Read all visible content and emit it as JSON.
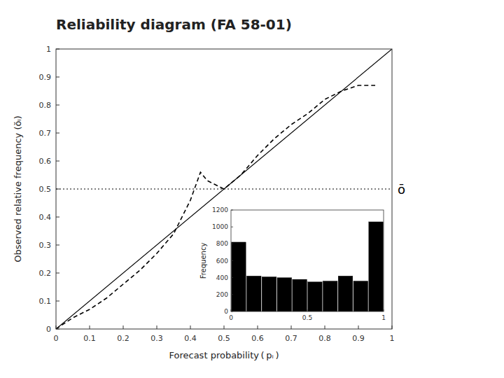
{
  "chart_data": [
    {
      "type": "line",
      "title": "Reliability diagram (FA 58-01)",
      "xlabel": "Forecast probability ( pᵢ )",
      "ylabel": "Observed relative frequency (ŏᵢ)",
      "xlim": [
        0,
        1
      ],
      "ylim": [
        0,
        1
      ],
      "xticks": [
        0,
        0.1,
        0.2,
        0.3,
        0.4,
        0.5,
        0.6,
        0.7,
        0.8,
        0.9,
        1
      ],
      "yticks": [
        0,
        0.1,
        0.2,
        0.3,
        0.4,
        0.5,
        0.6,
        0.7,
        0.8,
        0.9,
        1
      ],
      "grid": false,
      "series": [
        {
          "x": [
            0,
            1
          ],
          "values": [
            0,
            1
          ],
          "color": "black",
          "line_style": "solid"
        },
        {
          "x": [
            0.0,
            0.05,
            0.1,
            0.15,
            0.2,
            0.25,
            0.3,
            0.35,
            0.4,
            0.43,
            0.45,
            0.5,
            0.55,
            0.6,
            0.65,
            0.7,
            0.75,
            0.8,
            0.85,
            0.9,
            0.95
          ],
          "values": [
            0.0,
            0.04,
            0.07,
            0.11,
            0.16,
            0.21,
            0.27,
            0.34,
            0.46,
            0.56,
            0.53,
            0.5,
            0.55,
            0.62,
            0.68,
            0.73,
            0.77,
            0.82,
            0.85,
            0.87,
            0.87
          ],
          "color": "black",
          "line_style": "dashed"
        }
      ],
      "annotations": [
        {
          "text": "ō",
          "y": 0.5,
          "line_style": "dotted"
        }
      ]
    },
    {
      "type": "bar",
      "ylabel": "Frequency",
      "x": [
        0.05,
        0.15,
        0.25,
        0.35,
        0.45,
        0.55,
        0.65,
        0.75,
        0.85,
        0.95
      ],
      "values": [
        820,
        420,
        410,
        400,
        380,
        350,
        360,
        420,
        360,
        1060
      ],
      "color": "black",
      "xlim": [
        0,
        1
      ],
      "ylim": [
        0,
        1200
      ],
      "xticks": [
        0,
        0.5,
        1
      ],
      "yticks": [
        0,
        200,
        400,
        600,
        800,
        1000,
        1200
      ],
      "grid": false
    }
  ]
}
